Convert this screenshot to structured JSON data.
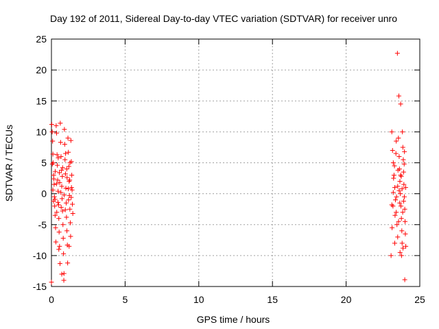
{
  "chart_data": {
    "type": "scatter",
    "title": "Day 192 of 2011, Sidereal Day-to-day VTEC variation (SDTVAR) for receiver unro",
    "xlabel": "GPS time / hours",
    "ylabel": "SDTVAR / TECUs",
    "xlim": [
      0,
      25
    ],
    "ylim": [
      -15,
      25
    ],
    "xticks": [
      "0",
      "5",
      "10",
      "15",
      "20",
      "25"
    ],
    "yticks": [
      "-15",
      "-10",
      "-5",
      "0",
      "5",
      "10",
      "15",
      "20",
      "25"
    ],
    "grid": true,
    "marker": "+",
    "color": "#ff0000",
    "series": [
      {
        "points": [
          [
            0.0,
            -14.3
          ],
          [
            0.02,
            11.2
          ],
          [
            0.05,
            10.0
          ],
          [
            0.08,
            8.5
          ],
          [
            0.1,
            6.4
          ],
          [
            0.12,
            5.0
          ],
          [
            0.15,
            3.0
          ],
          [
            0.18,
            1.5
          ],
          [
            0.2,
            -0.5
          ],
          [
            0.22,
            -2.0
          ],
          [
            0.25,
            -3.5
          ],
          [
            0.28,
            -5.5
          ],
          [
            0.3,
            -7.8
          ],
          [
            0.32,
            11.0
          ],
          [
            0.35,
            9.8
          ],
          [
            0.38,
            6.3
          ],
          [
            0.4,
            4.6
          ],
          [
            0.42,
            2.2
          ],
          [
            0.45,
            0.4
          ],
          [
            0.48,
            -1.8
          ],
          [
            0.5,
            -4.0
          ],
          [
            0.52,
            -6.2
          ],
          [
            0.55,
            -8.5
          ],
          [
            0.58,
            -11.3
          ],
          [
            0.6,
            11.4
          ],
          [
            0.62,
            8.3
          ],
          [
            0.65,
            6.0
          ],
          [
            0.68,
            3.8
          ],
          [
            0.7,
            1.2
          ],
          [
            0.72,
            -0.8
          ],
          [
            0.75,
            -2.8
          ],
          [
            0.78,
            -5.0
          ],
          [
            0.8,
            -7.2
          ],
          [
            0.82,
            -9.7
          ],
          [
            0.85,
            -12.9
          ],
          [
            0.88,
            10.4
          ],
          [
            0.9,
            8.0
          ],
          [
            0.92,
            5.5
          ],
          [
            0.95,
            3.2
          ],
          [
            0.98,
            0.9
          ],
          [
            1.0,
            -1.5
          ],
          [
            1.02,
            -3.8
          ],
          [
            1.05,
            -6.0
          ],
          [
            1.08,
            -8.3
          ],
          [
            1.1,
            -11.2
          ],
          [
            1.12,
            9.0
          ],
          [
            1.15,
            6.7
          ],
          [
            1.18,
            4.4
          ],
          [
            1.2,
            2.0
          ],
          [
            1.22,
            -0.3
          ],
          [
            1.25,
            -2.5
          ],
          [
            1.28,
            -4.7
          ],
          [
            1.3,
            -6.9
          ],
          [
            1.32,
            8.6
          ],
          [
            1.35,
            5.2
          ],
          [
            1.38,
            3.0
          ],
          [
            1.4,
            0.6
          ],
          [
            1.42,
            -1.7
          ],
          [
            1.45,
            -3.2
          ],
          [
            0.06,
            4.8
          ],
          [
            0.14,
            -1.2
          ],
          [
            0.26,
            3.6
          ],
          [
            0.36,
            -3.0
          ],
          [
            0.46,
            5.8
          ],
          [
            0.56,
            1.8
          ],
          [
            0.66,
            -2.2
          ],
          [
            0.76,
            4.2
          ],
          [
            0.86,
            -0.2
          ],
          [
            0.96,
            6.5
          ],
          [
            1.06,
            2.6
          ],
          [
            1.16,
            -1.0
          ],
          [
            1.26,
            5.0
          ],
          [
            1.36,
            1.0
          ],
          [
            0.84,
            -14.0
          ],
          [
            0.7,
            -13.0
          ],
          [
            0.5,
            -9.0
          ],
          [
            1.2,
            -8.5
          ],
          [
            0.1,
            0.6
          ],
          [
            0.16,
            2.4
          ],
          [
            0.24,
            -0.9
          ],
          [
            0.34,
            1.6
          ],
          [
            0.44,
            -1.4
          ],
          [
            0.54,
            3.4
          ],
          [
            0.64,
            0.2
          ],
          [
            0.74,
            2.8
          ],
          [
            0.94,
            -2.6
          ],
          [
            1.04,
            4.0
          ],
          [
            1.14,
            0.8
          ],
          [
            1.24,
            2.2
          ],
          [
            1.34,
            -0.6
          ],
          [
            23.05,
            -10.0
          ],
          [
            23.1,
            10.0
          ],
          [
            23.15,
            7.0
          ],
          [
            23.2,
            5.0
          ],
          [
            23.25,
            3.0
          ],
          [
            23.3,
            1.0
          ],
          [
            23.35,
            -1.0
          ],
          [
            23.4,
            -3.0
          ],
          [
            23.45,
            -5.0
          ],
          [
            23.48,
            22.7
          ],
          [
            23.5,
            -7.0
          ],
          [
            23.55,
            9.0
          ],
          [
            23.58,
            15.8
          ],
          [
            23.6,
            6.0
          ],
          [
            23.62,
            4.0
          ],
          [
            23.65,
            2.0
          ],
          [
            23.68,
            0.0
          ],
          [
            23.7,
            14.5
          ],
          [
            23.72,
            -2.0
          ],
          [
            23.75,
            -4.0
          ],
          [
            23.78,
            -6.0
          ],
          [
            23.8,
            -8.0
          ],
          [
            23.82,
            10.0
          ],
          [
            23.85,
            7.5
          ],
          [
            23.88,
            5.5
          ],
          [
            23.9,
            3.5
          ],
          [
            23.92,
            1.5
          ],
          [
            23.95,
            -0.5
          ],
          [
            23.98,
            -2.5
          ],
          [
            24.0,
            -4.5
          ],
          [
            24.02,
            -6.5
          ],
          [
            24.05,
            -8.5
          ],
          [
            23.98,
            -13.9
          ],
          [
            23.12,
            -5.5
          ],
          [
            23.18,
            -2.0
          ],
          [
            23.22,
            2.5
          ],
          [
            23.28,
            4.5
          ],
          [
            23.32,
            -3.5
          ],
          [
            23.38,
            6.5
          ],
          [
            23.42,
            -0.5
          ],
          [
            23.52,
            3.8
          ],
          [
            23.56,
            -4.5
          ],
          [
            23.64,
            -1.5
          ],
          [
            23.74,
            2.8
          ],
          [
            23.84,
            -3.0
          ],
          [
            23.94,
            4.8
          ],
          [
            24.04,
            1.0
          ],
          [
            23.66,
            -9.5
          ],
          [
            23.76,
            -10.0
          ],
          [
            23.86,
            -8.8
          ],
          [
            23.96,
            6.8
          ],
          [
            23.4,
            8.5
          ],
          [
            23.3,
            -8.0
          ],
          [
            23.6,
            0.5
          ],
          [
            23.7,
            3.0
          ],
          [
            23.8,
            0.8
          ],
          [
            23.9,
            -1.2
          ],
          [
            23.5,
            1.2
          ],
          [
            23.2,
            0.2
          ],
          [
            23.1,
            -1.8
          ]
        ]
      }
    ]
  }
}
